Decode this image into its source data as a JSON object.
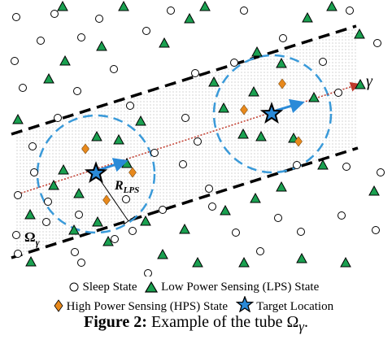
{
  "diagram": {
    "axis_label": "γ",
    "radius_label": "R",
    "radius_subscript": "LPS",
    "tube_label": "Ω",
    "tube_subscript": "γ"
  },
  "legend": {
    "sleep": "Sleep State",
    "lps": "Low Power Sensing (LPS) State",
    "hps": "High Power Sensing (HPS) State",
    "target": "Target Location"
  },
  "caption": {
    "label": "Figure 2:",
    "text": "Example of the tube Ω",
    "subscript": "γ",
    "end": "."
  },
  "colors": {
    "sleep_fill": "#ffffff",
    "lps_fill": "#1aa050",
    "hps_fill": "#e8891c",
    "target_fill": "#2a8ad8",
    "circle_stroke": "#3a9ad9",
    "direction_line": "#c0392b",
    "arrow": "#2a8ad8"
  }
}
